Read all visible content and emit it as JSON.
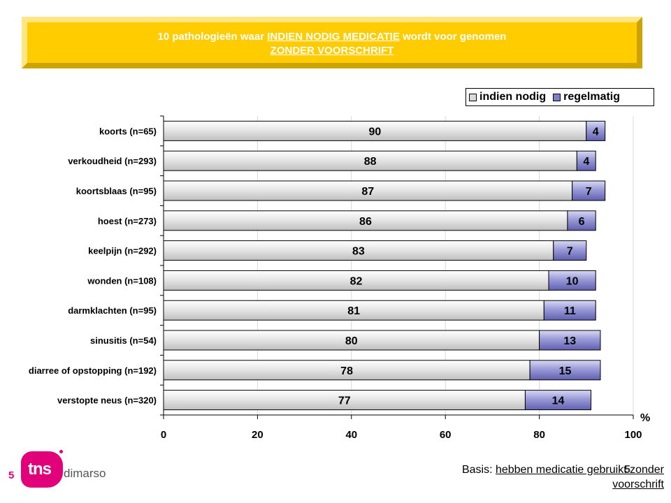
{
  "title": {
    "line1_prefix": "10 pathologieën waar ",
    "line1_emph": "INDIEN NODIG MEDICATIE",
    "line1_suffix": " wordt voor genomen",
    "line2": "ZONDER VOORSCHRIFT"
  },
  "colors": {
    "banner": "#FFCC00",
    "banner_light": "#FFE680",
    "banner_dark": "#CCA300",
    "bar_indien": "#D9D9D9",
    "bar_regelmatig": "#8080C8",
    "accent": "#E2007A"
  },
  "legend": {
    "indien": "indien nodig",
    "regelmatig": "regelmatig"
  },
  "unit": "%",
  "chart_data": {
    "type": "bar",
    "orientation": "horizontal",
    "stacked": true,
    "categories": [
      "koorts (n=65)",
      "verkoudheid (n=293)",
      "koortsblaas (n=95)",
      "hoest (n=273)",
      "keelpijn (n=292)",
      "wonden (n=108)",
      "darmklachten (n=95)",
      "sinusitis (n=54)",
      "diarree of opstopping (n=192)",
      "verstopte neus (n=320)"
    ],
    "series": [
      {
        "name": "indien nodig",
        "values": [
          90,
          88,
          87,
          86,
          83,
          82,
          81,
          80,
          78,
          77
        ]
      },
      {
        "name": "regelmatig",
        "values": [
          4,
          4,
          7,
          6,
          7,
          10,
          11,
          13,
          15,
          14
        ]
      }
    ],
    "xlim": [
      0,
      100
    ],
    "xticks": [
      "0",
      "20",
      "40",
      "60",
      "80",
      "100"
    ],
    "grid": "vertical",
    "legend_position": "top-right"
  },
  "footer": {
    "page_number": "5",
    "logo_main": "tns",
    "logo_sub": "dimarso",
    "slide_number": "5",
    "basis_prefix": "Basis: ",
    "basis_text": "hebben medicatie gebruikt zonder voorschrift"
  }
}
